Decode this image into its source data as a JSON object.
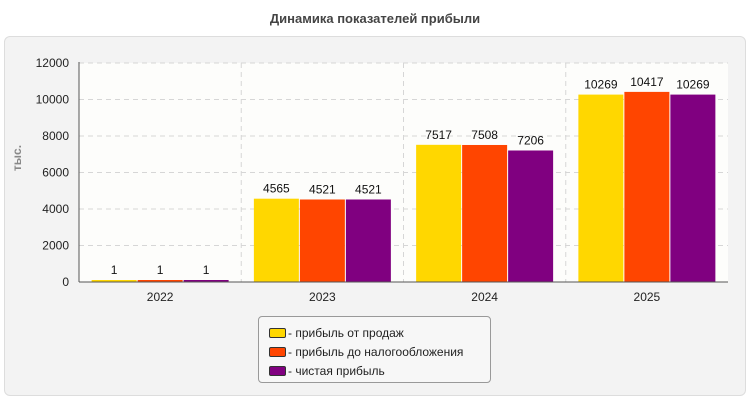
{
  "chart_data": {
    "type": "bar",
    "title": "Динамика показателей прибыли",
    "ylabel": "тыс.",
    "xlabel": "",
    "categories": [
      "2022",
      "2023",
      "2024",
      "2025"
    ],
    "series": [
      {
        "name": "- прибыль от продаж",
        "color": "#ffd700",
        "values": [
          1,
          4565,
          7517,
          10269
        ]
      },
      {
        "name": "- прибыль до налогообложения",
        "color": "#ff4500",
        "values": [
          1,
          4521,
          7508,
          10417
        ]
      },
      {
        "name": "- чистая прибыль",
        "color": "#800080",
        "values": [
          1,
          4521,
          7206,
          10269
        ]
      }
    ],
    "ylim": [
      0,
      12000
    ],
    "yticks": [
      "0",
      "2000",
      "4000",
      "6000",
      "8000",
      "10000",
      "12000"
    ],
    "grid": true,
    "legend_position": "bottom-center"
  }
}
